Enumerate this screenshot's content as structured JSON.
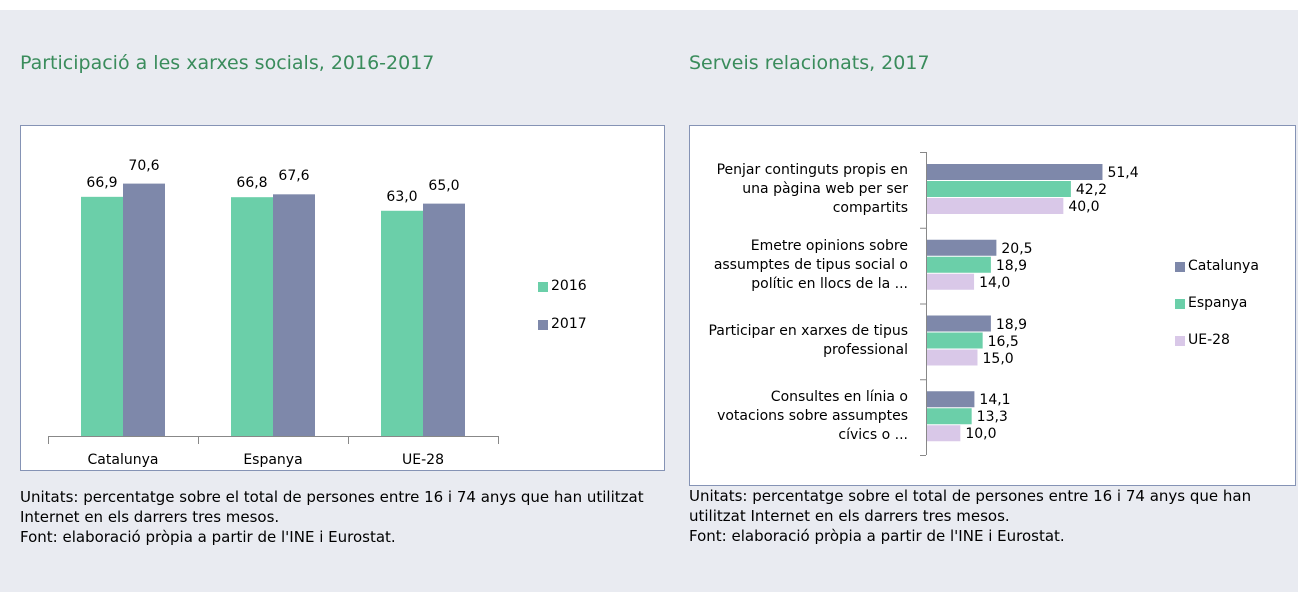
{
  "chart_data": [
    {
      "type": "bar",
      "title": "Participació a les xarxes socials, 2016-2017",
      "categories": [
        "Catalunya",
        "Espanya",
        "UE-28"
      ],
      "series": [
        {
          "name": "2016",
          "color": "#6bcfa9",
          "values": [
            66.9,
            66.8,
            63.0
          ],
          "value_labels": [
            "66,9",
            "66,8",
            "63,0"
          ]
        },
        {
          "name": "2017",
          "color": "#7e88aa",
          "values": [
            70.6,
            67.6,
            65.0
          ],
          "value_labels": [
            "70,6",
            "67,6",
            "65,0"
          ]
        }
      ],
      "ylim": [
        0,
        80
      ],
      "legend": "right",
      "notes": [
        "Unitats: percentatge sobre el total de persones entre 16 i 74 anys que han utilitzat Internet en els darrers tres mesos.",
        "Font: elaboració pròpia a partir de l'INE i Eurostat."
      ]
    },
    {
      "type": "hbar",
      "title": "Serveis relacionats, 2017",
      "categories": [
        "Penjar continguts propis en una pàgina web per ser compartits",
        "Emetre opinions sobre assumptes de tipus social o polític en llocs de la ...",
        "Participar en xarxes de tipus professional",
        "Consultes en línia o votacions sobre assumptes cívics o ..."
      ],
      "series": [
        {
          "name": "Catalunya",
          "color": "#7e88aa",
          "values": [
            51.4,
            20.5,
            18.9,
            14.1
          ],
          "value_labels": [
            "51,4",
            "20,5",
            "18,9",
            "14,1"
          ]
        },
        {
          "name": "Espanya",
          "color": "#6bcfa9",
          "values": [
            42.2,
            18.9,
            16.5,
            13.3
          ],
          "value_labels": [
            "42,2",
            "18,9",
            "16,5",
            "13,3"
          ]
        },
        {
          "name": "UE-28",
          "color": "#d9c8e8",
          "values": [
            40.0,
            14.0,
            15.0,
            10.0
          ],
          "value_labels": [
            "40,0",
            "14,0",
            "15,0",
            "10,0"
          ]
        }
      ],
      "xlim": [
        0,
        60
      ],
      "legend": "right",
      "notes": [
        "Unitats: percentatge sobre el total de persones entre 16 i 74 anys que han utilitzat Internet en els darrers tres mesos.",
        "Font: elaboració pròpia a partir de l'INE i Eurostat."
      ]
    }
  ]
}
